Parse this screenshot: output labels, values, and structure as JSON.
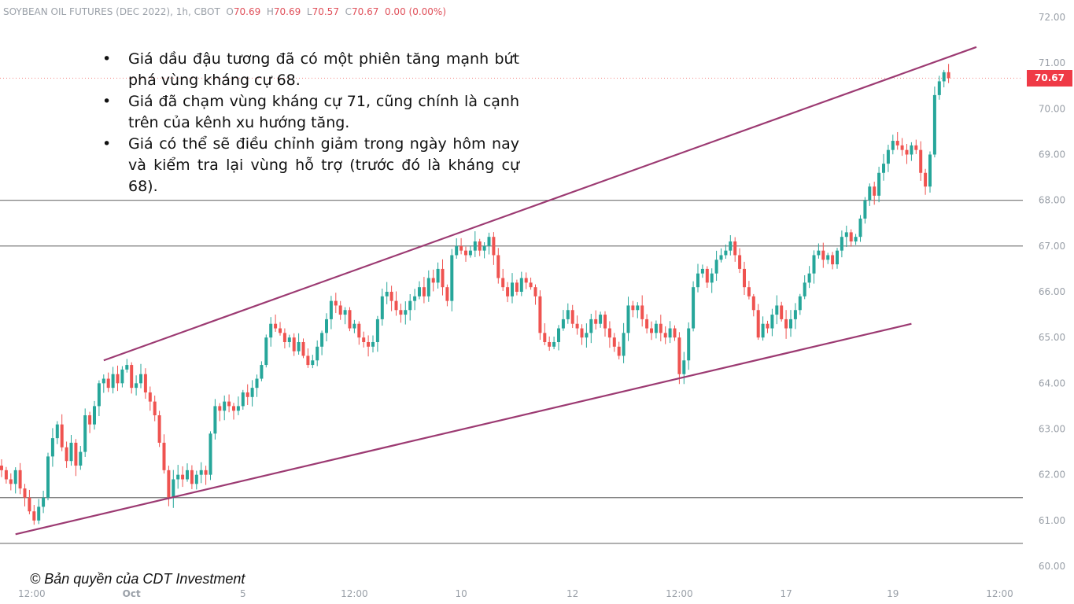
{
  "header": {
    "symbol": "SOYBEAN OIL FUTURES (DEC 2022), 1h, CBOT",
    "o_label": "O",
    "o_value": "70.69",
    "h_label": "H",
    "h_value": "70.69",
    "l_label": "L",
    "l_value": "70.57",
    "c_label": "C",
    "c_value": "70.67",
    "change": "0.00 (0.00%)"
  },
  "notes": [
    "Giá dầu đậu tương đã có một phiên tăng mạnh bứt phá vùng kháng cự 68.",
    "Giá đã chạm vùng kháng cự 71, cũng chính là cạnh trên của kênh xu hướng tăng.",
    "Giá có thể sẽ điều chỉnh giảm trong ngày hôm nay và kiểm tra lại vùng hỗ trợ (trước đó là kháng cự 68)."
  ],
  "copyright": "© Bản quyền của CDT Investment",
  "current_price_label": "70.67",
  "colors": {
    "up": "#26a69a",
    "down": "#ef5350",
    "channel": "#9c3a72",
    "level": "#707070",
    "price_line": "#ef5350"
  },
  "chart_data": {
    "type": "candlestick",
    "ylim": [
      60.0,
      72.0
    ],
    "y_ticks": [
      "60.00",
      "61.00",
      "62.00",
      "63.00",
      "64.00",
      "65.00",
      "66.00",
      "67.00",
      "68.00",
      "69.00",
      "70.00",
      "71.00",
      "72.00"
    ],
    "x_ticks": [
      {
        "label": "12:00",
        "t": 6.5,
        "bold": false
      },
      {
        "label": "Oct",
        "t": 28,
        "bold": true
      },
      {
        "label": "5",
        "t": 52,
        "bold": false
      },
      {
        "label": "12:00",
        "t": 76,
        "bold": false
      },
      {
        "label": "10",
        "t": 99,
        "bold": false
      },
      {
        "label": "12",
        "t": 123,
        "bold": false
      },
      {
        "label": "12:00",
        "t": 146,
        "bold": false
      },
      {
        "label": "17",
        "t": 169,
        "bold": false
      },
      {
        "label": "19",
        "t": 192,
        "bold": false
      },
      {
        "label": "12:00",
        "t": 215,
        "bold": false
      }
    ],
    "horizontal_levels": [
      61.5,
      67.0,
      68.0,
      60.5
    ],
    "current_price": 70.67,
    "channel_upper": [
      [
        22,
        64.5
      ],
      [
        210,
        71.35
      ]
    ],
    "channel_lower": [
      [
        3,
        60.7
      ],
      [
        196,
        65.3
      ]
    ],
    "candles_close": [
      62.1,
      61.9,
      61.8,
      62.1,
      61.7,
      61.5,
      61.2,
      61.0,
      61.3,
      61.5,
      62.4,
      62.8,
      63.1,
      62.6,
      62.3,
      62.7,
      62.2,
      62.5,
      63.3,
      63.1,
      63.5,
      64.0,
      64.1,
      63.9,
      64.2,
      64.0,
      64.3,
      64.4,
      63.9,
      64.0,
      64.2,
      63.8,
      63.6,
      63.3,
      62.7,
      62.1,
      61.5,
      61.9,
      62.0,
      61.9,
      62.1,
      61.8,
      62.0,
      62.1,
      62.0,
      62.9,
      63.5,
      63.4,
      63.6,
      63.5,
      63.4,
      63.5,
      63.8,
      63.7,
      63.9,
      64.1,
      64.4,
      65.0,
      65.3,
      65.2,
      65.1,
      64.9,
      65.0,
      64.7,
      64.9,
      64.6,
      64.4,
      64.5,
      64.8,
      65.1,
      65.4,
      65.8,
      65.7,
      65.5,
      65.6,
      65.2,
      65.3,
      65.0,
      64.9,
      64.8,
      64.9,
      65.4,
      65.9,
      66.0,
      65.8,
      65.6,
      65.5,
      65.6,
      65.8,
      65.9,
      66.1,
      65.9,
      66.3,
      66.2,
      66.5,
      66.1,
      65.8,
      66.8,
      67.0,
      66.9,
      66.8,
      66.9,
      67.1,
      66.9,
      67.0,
      67.2,
      66.8,
      66.3,
      66.1,
      65.9,
      66.2,
      66.0,
      66.3,
      66.2,
      66.1,
      65.9,
      65.1,
      64.9,
      64.8,
      64.9,
      65.2,
      65.4,
      65.6,
      65.3,
      65.2,
      65.0,
      65.1,
      65.4,
      65.3,
      65.5,
      65.2,
      65.0,
      64.8,
      64.6,
      65.1,
      65.7,
      65.6,
      65.7,
      65.4,
      65.2,
      65.1,
      65.3,
      65.1,
      65.0,
      65.2,
      65.0,
      64.2,
      64.5,
      65.2,
      66.1,
      66.4,
      66.5,
      66.2,
      66.4,
      66.7,
      66.8,
      66.9,
      67.1,
      66.8,
      66.5,
      66.1,
      65.9,
      65.6,
      65.0,
      65.3,
      65.2,
      65.5,
      65.7,
      65.4,
      65.2,
      65.4,
      65.6,
      65.9,
      66.2,
      66.4,
      66.8,
      66.9,
      66.7,
      66.8,
      66.6,
      66.9,
      67.2,
      67.3,
      67.1,
      67.2,
      67.6,
      68.0,
      68.3,
      68.1,
      68.6,
      68.8,
      69.1,
      69.3,
      69.2,
      69.1,
      69.0,
      69.2,
      69.1,
      68.6,
      68.3,
      69.0,
      70.3,
      70.6,
      70.8,
      70.67
    ]
  }
}
